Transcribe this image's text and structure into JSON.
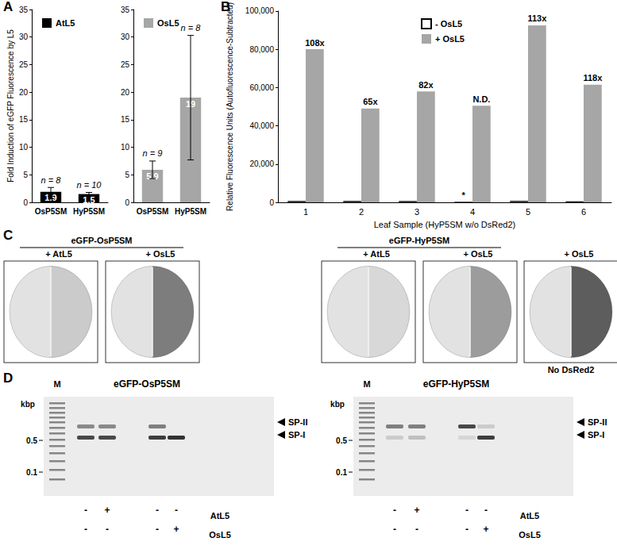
{
  "panel_labels": [
    "A",
    "B",
    "C",
    "D"
  ],
  "chart_data": [
    {
      "panel": "A",
      "type": "bar",
      "y_label": "Fold Induction of eGFP Fluorescence by L5",
      "categories": [
        "OsP5SM",
        "HyP5SM"
      ],
      "series": [
        {
          "name": "AtL5",
          "color": "#000000",
          "values": [
            1.9,
            1.5
          ],
          "errors": [
            0.8,
            0.3
          ],
          "n_labels": [
            "n = 8",
            "n = 10"
          ]
        }
      ],
      "ylim": [
        0,
        35
      ],
      "yticks": [
        0,
        5,
        10,
        15,
        20,
        25,
        30,
        35
      ],
      "data_labels": true,
      "legend": "top-left",
      "grid": false
    },
    {
      "panel": "A",
      "type": "bar",
      "categories": [
        "OsP5SM",
        "HyP5SM"
      ],
      "series": [
        {
          "name": "OsL5",
          "color": "#a6a6a6",
          "values": [
            5.9,
            19
          ],
          "errors": [
            1.6,
            11.3
          ],
          "n_labels": [
            "n = 9",
            "n = 8"
          ]
        }
      ],
      "ylim": [
        0,
        35
      ],
      "yticks": [
        0,
        5,
        10,
        15,
        20,
        25,
        30,
        35
      ],
      "data_labels": true,
      "legend": "top-left",
      "grid": false
    },
    {
      "panel": "B",
      "type": "bar",
      "x_label": "Leaf Sample (HyP5SM w/o DsRed2)",
      "y_label": "Relative Fluorescence Units (Autofluorescence-Subtracted)",
      "categories": [
        "1",
        "2",
        "3",
        "4",
        "5",
        "6"
      ],
      "series": [
        {
          "name": "- OsL5",
          "color": "#ffffff",
          "values": [
            740,
            750,
            710,
            0,
            820,
            520
          ],
          "point_labels": [
            null,
            null,
            null,
            "*",
            null,
            null
          ]
        },
        {
          "name": "+ OsL5",
          "color": "#a6a6a6",
          "values": [
            80000,
            49000,
            58000,
            50500,
            92500,
            61500
          ],
          "point_labels": [
            "108x",
            "65x",
            "82x",
            "N.D.",
            "113x",
            "118x"
          ]
        }
      ],
      "ylim": [
        0,
        100000
      ],
      "yticks": [
        0,
        20000,
        40000,
        60000,
        80000,
        100000
      ],
      "data_labels": false,
      "legend": "top-center",
      "grid": false
    }
  ],
  "panel_C": {
    "groups": [
      {
        "title": "eGFP-OsP5SM",
        "leaves": [
          {
            "label": "+ AtL5"
          },
          {
            "label": "+ OsL5"
          }
        ]
      },
      {
        "title": "eGFP-HyP5SM",
        "leaves": [
          {
            "label": "+ AtL5"
          },
          {
            "label": "+ OsL5"
          },
          {
            "label": "+ OsL5",
            "caption": "No DsRed2"
          }
        ]
      }
    ]
  },
  "panel_D": {
    "gels": [
      {
        "title": "eGFP-OsP5SM",
        "marker_lane": "M",
        "unit": "kbp",
        "size_marks": [
          "0.5",
          "0.1"
        ],
        "band_labels": [
          "SP-II",
          "SP-I"
        ],
        "rows": [
          {
            "name": "AtL5",
            "signs": [
              "-",
              "+",
              "-",
              "-"
            ]
          },
          {
            "name": "OsL5",
            "signs": [
              "-",
              "-",
              "-",
              "+"
            ]
          }
        ]
      },
      {
        "title": "eGFP-HyP5SM",
        "marker_lane": "M",
        "unit": "kbp",
        "size_marks": [
          "0.5",
          "0.1"
        ],
        "band_labels": [
          "SP-II",
          "SP-I"
        ],
        "rows": [
          {
            "name": "AtL5",
            "signs": [
              "-",
              "+",
              "-",
              "-"
            ]
          },
          {
            "name": "OsL5",
            "signs": [
              "-",
              "-",
              "-",
              "+"
            ]
          }
        ]
      }
    ]
  }
}
